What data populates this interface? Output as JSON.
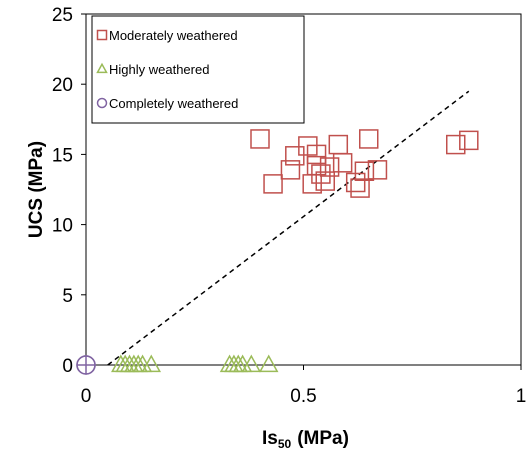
{
  "chart_data": {
    "type": "scatter",
    "title": "",
    "xlabel_main": "Is",
    "xlabel_sub": "50",
    "xlabel_unit": "(MPa)",
    "ylabel": "UCS (MPa)",
    "xlim": [
      0,
      1
    ],
    "ylim": [
      0,
      25
    ],
    "xticks": [
      "0",
      "0.5",
      "1"
    ],
    "xtick_values": [
      0,
      0.5,
      1
    ],
    "yticks": [
      "0",
      "5",
      "10",
      "15",
      "20",
      "25"
    ],
    "ytick_values": [
      0,
      5,
      10,
      15,
      20,
      25
    ],
    "grid": false,
    "legend_position": "top-left",
    "series": [
      {
        "name": "Moderately weathered",
        "marker": "square",
        "color": "#c0504d",
        "points": [
          [
            0.4,
            16.1
          ],
          [
            0.43,
            12.9
          ],
          [
            0.47,
            13.9
          ],
          [
            0.48,
            14.9
          ],
          [
            0.51,
            15.6
          ],
          [
            0.52,
            12.9
          ],
          [
            0.53,
            15.0
          ],
          [
            0.53,
            14.2
          ],
          [
            0.54,
            13.6
          ],
          [
            0.55,
            13.1
          ],
          [
            0.56,
            14.1
          ],
          [
            0.58,
            15.7
          ],
          [
            0.59,
            14.4
          ],
          [
            0.62,
            13.0
          ],
          [
            0.63,
            12.6
          ],
          [
            0.64,
            13.8
          ],
          [
            0.65,
            16.1
          ],
          [
            0.67,
            13.9
          ],
          [
            0.85,
            15.7
          ],
          [
            0.88,
            16.0
          ]
        ]
      },
      {
        "name": "Highly weathered",
        "marker": "triangle",
        "color": "#9bbb59",
        "points": [
          [
            0.08,
            0
          ],
          [
            0.09,
            0
          ],
          [
            0.1,
            0
          ],
          [
            0.11,
            0
          ],
          [
            0.12,
            0
          ],
          [
            0.13,
            0
          ],
          [
            0.15,
            0
          ],
          [
            0.33,
            0
          ],
          [
            0.34,
            0
          ],
          [
            0.35,
            0
          ],
          [
            0.36,
            0
          ],
          [
            0.38,
            0
          ],
          [
            0.42,
            0
          ]
        ]
      },
      {
        "name": "Completely weathered",
        "marker": "circle",
        "color": "#8064a2",
        "points": [
          [
            0,
            0
          ],
          [
            0,
            0
          ]
        ]
      }
    ],
    "trendline": {
      "style": "dashed",
      "color": "#000000",
      "points": [
        [
          0.05,
          0
        ],
        [
          0.88,
          19.5
        ]
      ]
    }
  }
}
